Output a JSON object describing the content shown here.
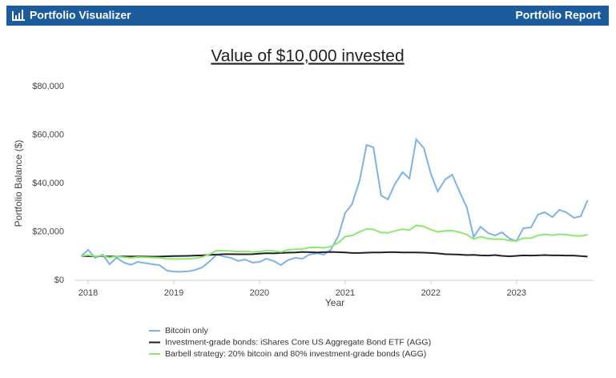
{
  "header": {
    "brand": "Portfolio Visualizer",
    "report": "Portfolio Report"
  },
  "chart_data": {
    "type": "line",
    "title": "Value of $10,000 invested",
    "xlabel": "Year",
    "ylabel": "Portfolio Balance ($)",
    "x": [
      2017.92,
      2018.0,
      2018.08,
      2018.17,
      2018.25,
      2018.33,
      2018.42,
      2018.5,
      2018.58,
      2018.67,
      2018.75,
      2018.83,
      2018.92,
      2019.0,
      2019.08,
      2019.17,
      2019.25,
      2019.33,
      2019.42,
      2019.5,
      2019.58,
      2019.67,
      2019.75,
      2019.83,
      2019.92,
      2020.0,
      2020.08,
      2020.17,
      2020.25,
      2020.33,
      2020.42,
      2020.5,
      2020.58,
      2020.67,
      2020.75,
      2020.83,
      2020.92,
      2021.0,
      2021.08,
      2021.17,
      2021.25,
      2021.33,
      2021.42,
      2021.5,
      2021.58,
      2021.67,
      2021.75,
      2021.83,
      2021.92,
      2022.0,
      2022.08,
      2022.17,
      2022.25,
      2022.33,
      2022.42,
      2022.5,
      2022.58,
      2022.67,
      2022.75,
      2022.83,
      2022.92,
      2023.0,
      2023.08,
      2023.17,
      2023.25,
      2023.33,
      2023.42,
      2023.5,
      2023.58,
      2023.67,
      2023.75,
      2023.83
    ],
    "series": [
      {
        "name": "Bitcoin only",
        "color": "#7eb3e3",
        "values": [
          10000,
          12600,
          9300,
          10600,
          6600,
          9300,
          7300,
          6400,
          7600,
          7100,
          6600,
          6300,
          4000,
          3600,
          3500,
          3700,
          4300,
          5300,
          7900,
          10600,
          9900,
          9200,
          8000,
          8600,
          7300,
          7600,
          8900,
          7900,
          6300,
          8300,
          9300,
          8900,
          10600,
          11200,
          10600,
          12500,
          18200,
          27800,
          31400,
          41300,
          55900,
          54900,
          35000,
          33400,
          39700,
          44600,
          42000,
          58200,
          54500,
          44000,
          36700,
          41700,
          43600,
          37000,
          30100,
          17900,
          22100,
          19500,
          18500,
          19800,
          17200,
          16200,
          21500,
          21800,
          27100,
          28100,
          26100,
          29100,
          28100,
          25800,
          26400,
          33100
        ]
      },
      {
        "name": "Investment-grade bonds: iShares Core US Aggregate Bond ETF (AGG)",
        "color": "#222222",
        "values": [
          10000,
          9950,
          9900,
          9900,
          9850,
          9850,
          9850,
          9850,
          9850,
          9800,
          9750,
          9800,
          9900,
          10000,
          10050,
          10100,
          10200,
          10300,
          10500,
          10600,
          10800,
          10800,
          10750,
          10750,
          10800,
          11000,
          11200,
          11100,
          11300,
          11400,
          11500,
          11700,
          11600,
          11500,
          11600,
          11700,
          11600,
          11500,
          11300,
          11300,
          11400,
          11500,
          11500,
          11600,
          11600,
          11500,
          11500,
          11500,
          11400,
          11300,
          11100,
          10800,
          10700,
          10600,
          10400,
          10500,
          10300,
          10200,
          10400,
          10100,
          9900,
          10100,
          10300,
          10200,
          10300,
          10400,
          10300,
          10300,
          10200,
          10200,
          10000,
          9800
        ]
      },
      {
        "name": "Barbell strategy: 20% bitcoin and 80% investment-grade bonds (AGG)",
        "color": "#8ee86f",
        "values": [
          10000,
          10400,
          9900,
          10100,
          9400,
          9900,
          9500,
          9300,
          9600,
          9500,
          9400,
          9300,
          8900,
          8800,
          8800,
          8900,
          9100,
          9600,
          10800,
          12300,
          12200,
          12100,
          11800,
          12000,
          11700,
          11800,
          12300,
          12100,
          11700,
          12600,
          12800,
          12900,
          13500,
          13600,
          13400,
          13900,
          15500,
          18000,
          18500,
          20000,
          21200,
          21000,
          19700,
          19600,
          20400,
          21100,
          20700,
          22700,
          22200,
          20900,
          20000,
          20400,
          20500,
          19900,
          18900,
          17000,
          18000,
          17200,
          17000,
          17000,
          16400,
          16200,
          17400,
          17400,
          18500,
          19000,
          18600,
          19000,
          18900,
          18400,
          18300,
          18800
        ]
      }
    ],
    "xlim": [
      2017.85,
      2023.9
    ],
    "xticks": [
      2018,
      2019,
      2020,
      2021,
      2022,
      2023
    ],
    "ylim": [
      0,
      80000
    ],
    "yticks": [
      {
        "value": 0,
        "label": "$0"
      },
      {
        "value": 20000,
        "label": "$20,000"
      },
      {
        "value": 40000,
        "label": "$40,000"
      },
      {
        "value": 60000,
        "label": "$60,000"
      },
      {
        "value": 80000,
        "label": "$80,000"
      }
    ],
    "grid": false
  }
}
